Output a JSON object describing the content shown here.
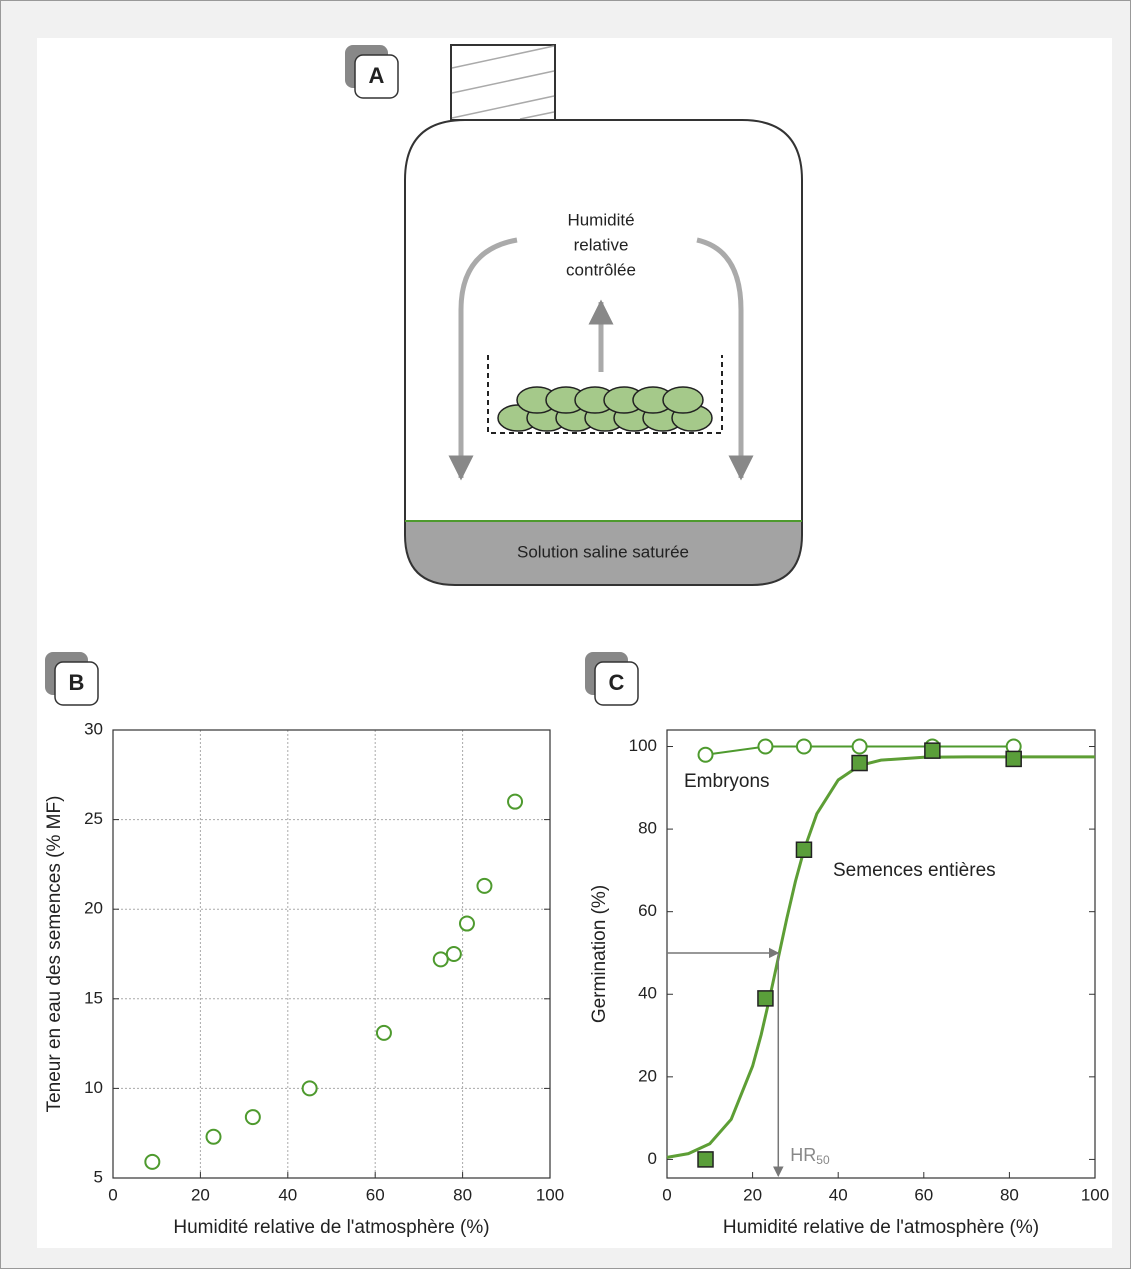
{
  "panel_a": {
    "label": "A",
    "humidity": [
      "Humidité",
      "relative",
      "contrôlée"
    ],
    "solution": "Solution saline saturée"
  },
  "chart_data": [
    {
      "type": "scatter",
      "panel": "B",
      "x_label": "Humidité relative de l'atmosphère (%)",
      "y_label": "Teneur en eau des semences (% MF)",
      "xlim": [
        0,
        100
      ],
      "ylim": [
        5,
        30
      ],
      "xticks": [
        0,
        20,
        40,
        60,
        80,
        100
      ],
      "yticks": [
        5,
        10,
        15,
        20,
        25,
        30
      ],
      "grid": true,
      "series": [
        {
          "color": "#4e9a2e",
          "marker": "circle",
          "line": false,
          "x": [
            9,
            23,
            32,
            45,
            62,
            75,
            78,
            81,
            85,
            92
          ],
          "values": [
            5.9,
            7.3,
            8.4,
            10.0,
            13.1,
            17.2,
            17.5,
            19.2,
            21.3,
            26.0
          ]
        }
      ]
    },
    {
      "type": "scatter",
      "panel": "C",
      "x_label": "Humidité relative de l'atmosphère (%)",
      "y_label": "Germination (%)",
      "xlim": [
        0,
        100
      ],
      "ylim": [
        -4.5,
        104
      ],
      "xticks": [
        0,
        20,
        40,
        60,
        80,
        100
      ],
      "yticks": [
        0,
        20,
        40,
        60,
        80,
        100
      ],
      "grid": false,
      "series": [
        {
          "name": "Embryons",
          "color": "#4e9a2e",
          "marker": "circle",
          "line": true,
          "x": [
            9,
            23,
            32,
            45,
            62,
            81
          ],
          "values": [
            98,
            100,
            100,
            100,
            100,
            100
          ]
        },
        {
          "color": "#5d9e35",
          "line": true,
          "x": [
            0,
            5,
            10,
            15,
            20,
            22,
            24,
            26,
            28,
            30,
            32,
            35,
            40,
            45,
            50,
            60,
            70,
            80,
            90,
            100
          ],
          "values": [
            0.5,
            1.4,
            3.8,
            9.7,
            22.6,
            30.2,
            39.2,
            48.8,
            58.4,
            67.3,
            74.9,
            83.7,
            91.9,
            95.4,
            96.7,
            97.4,
            97.5,
            97.5,
            97.5,
            97.5
          ]
        },
        {
          "name": "Semences entières",
          "color": "#5a9e3a",
          "marker": "square",
          "line": false,
          "x": [
            9,
            23,
            32,
            45,
            62,
            81
          ],
          "values": [
            0,
            39,
            75,
            96,
            99,
            97
          ]
        }
      ],
      "hr50": {
        "x": 26,
        "y": 50,
        "label": "HR",
        "subscript": "50"
      }
    }
  ]
}
